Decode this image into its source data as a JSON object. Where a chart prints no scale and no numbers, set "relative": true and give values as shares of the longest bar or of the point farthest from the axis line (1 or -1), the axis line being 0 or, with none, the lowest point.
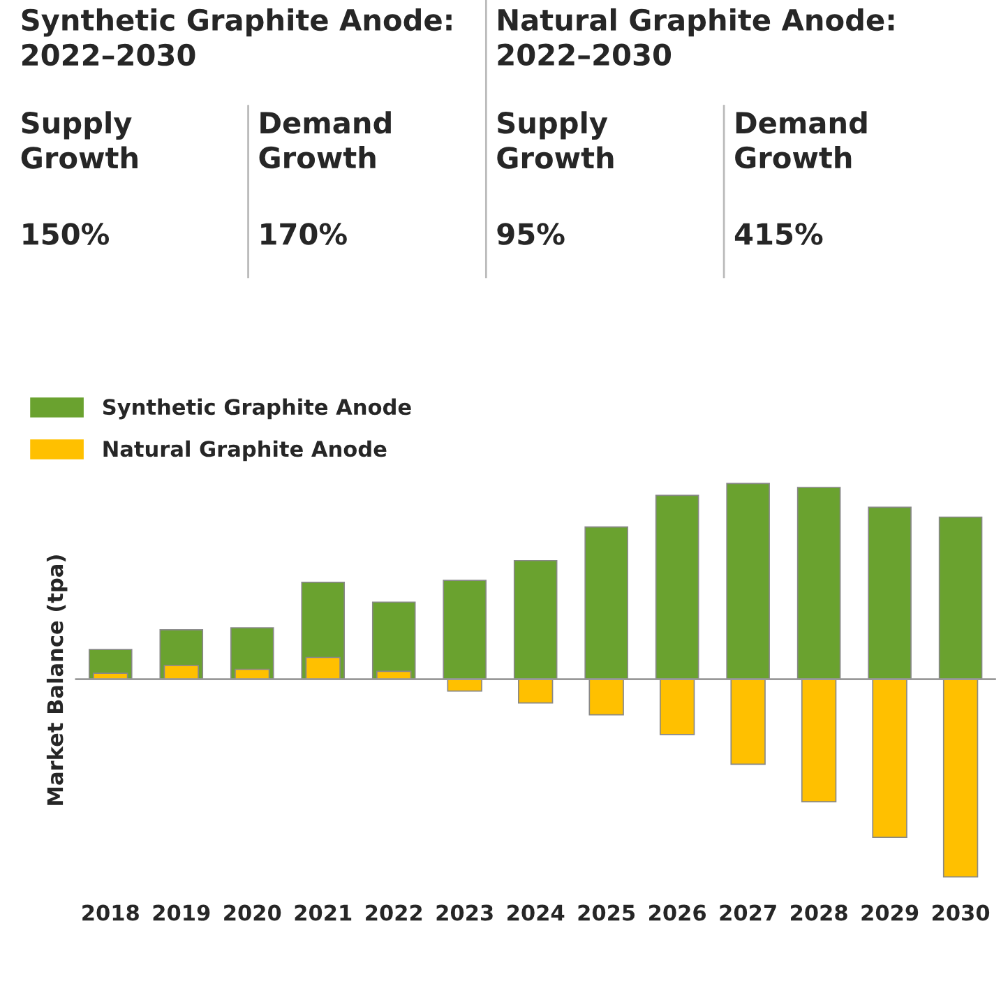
{
  "chart_data": [
    {
      "type": "other",
      "annotations": [
        "Synthetic Graphite Anode:\n2022–2030",
        "Supply\nGrowth",
        "150%",
        "Demand\nGrowth",
        "170%",
        "Natural Graphite Anode:\n2022–2030",
        "Supply\nGrowth",
        "95%",
        "Demand\nGrowth",
        "415%"
      ]
    },
    {
      "type": "bar",
      "relative": true,
      "ylabel": "Market Balance (tpa)",
      "legend": "top left",
      "categories": [
        "2018",
        "2019",
        "2020",
        "2021",
        "2022",
        "2023",
        "2024",
        "2025",
        "2026",
        "2027",
        "2028",
        "2029",
        "2030"
      ],
      "series": [
        {
          "name": "Synthetic Graphite Anode",
          "color": "#6aa22f",
          "values": [
            0.15,
            0.25,
            0.26,
            0.49,
            0.39,
            0.5,
            0.6,
            0.77,
            0.93,
            0.99,
            0.97,
            0.87,
            0.82
          ]
        },
        {
          "name": "Natural Graphite Anode",
          "color": "#ffc000",
          "values": [
            0.03,
            0.07,
            0.05,
            0.11,
            0.04,
            -0.06,
            -0.12,
            -0.18,
            -0.28,
            -0.43,
            -0.62,
            -0.8,
            -1
          ]
        }
      ]
    }
  ]
}
